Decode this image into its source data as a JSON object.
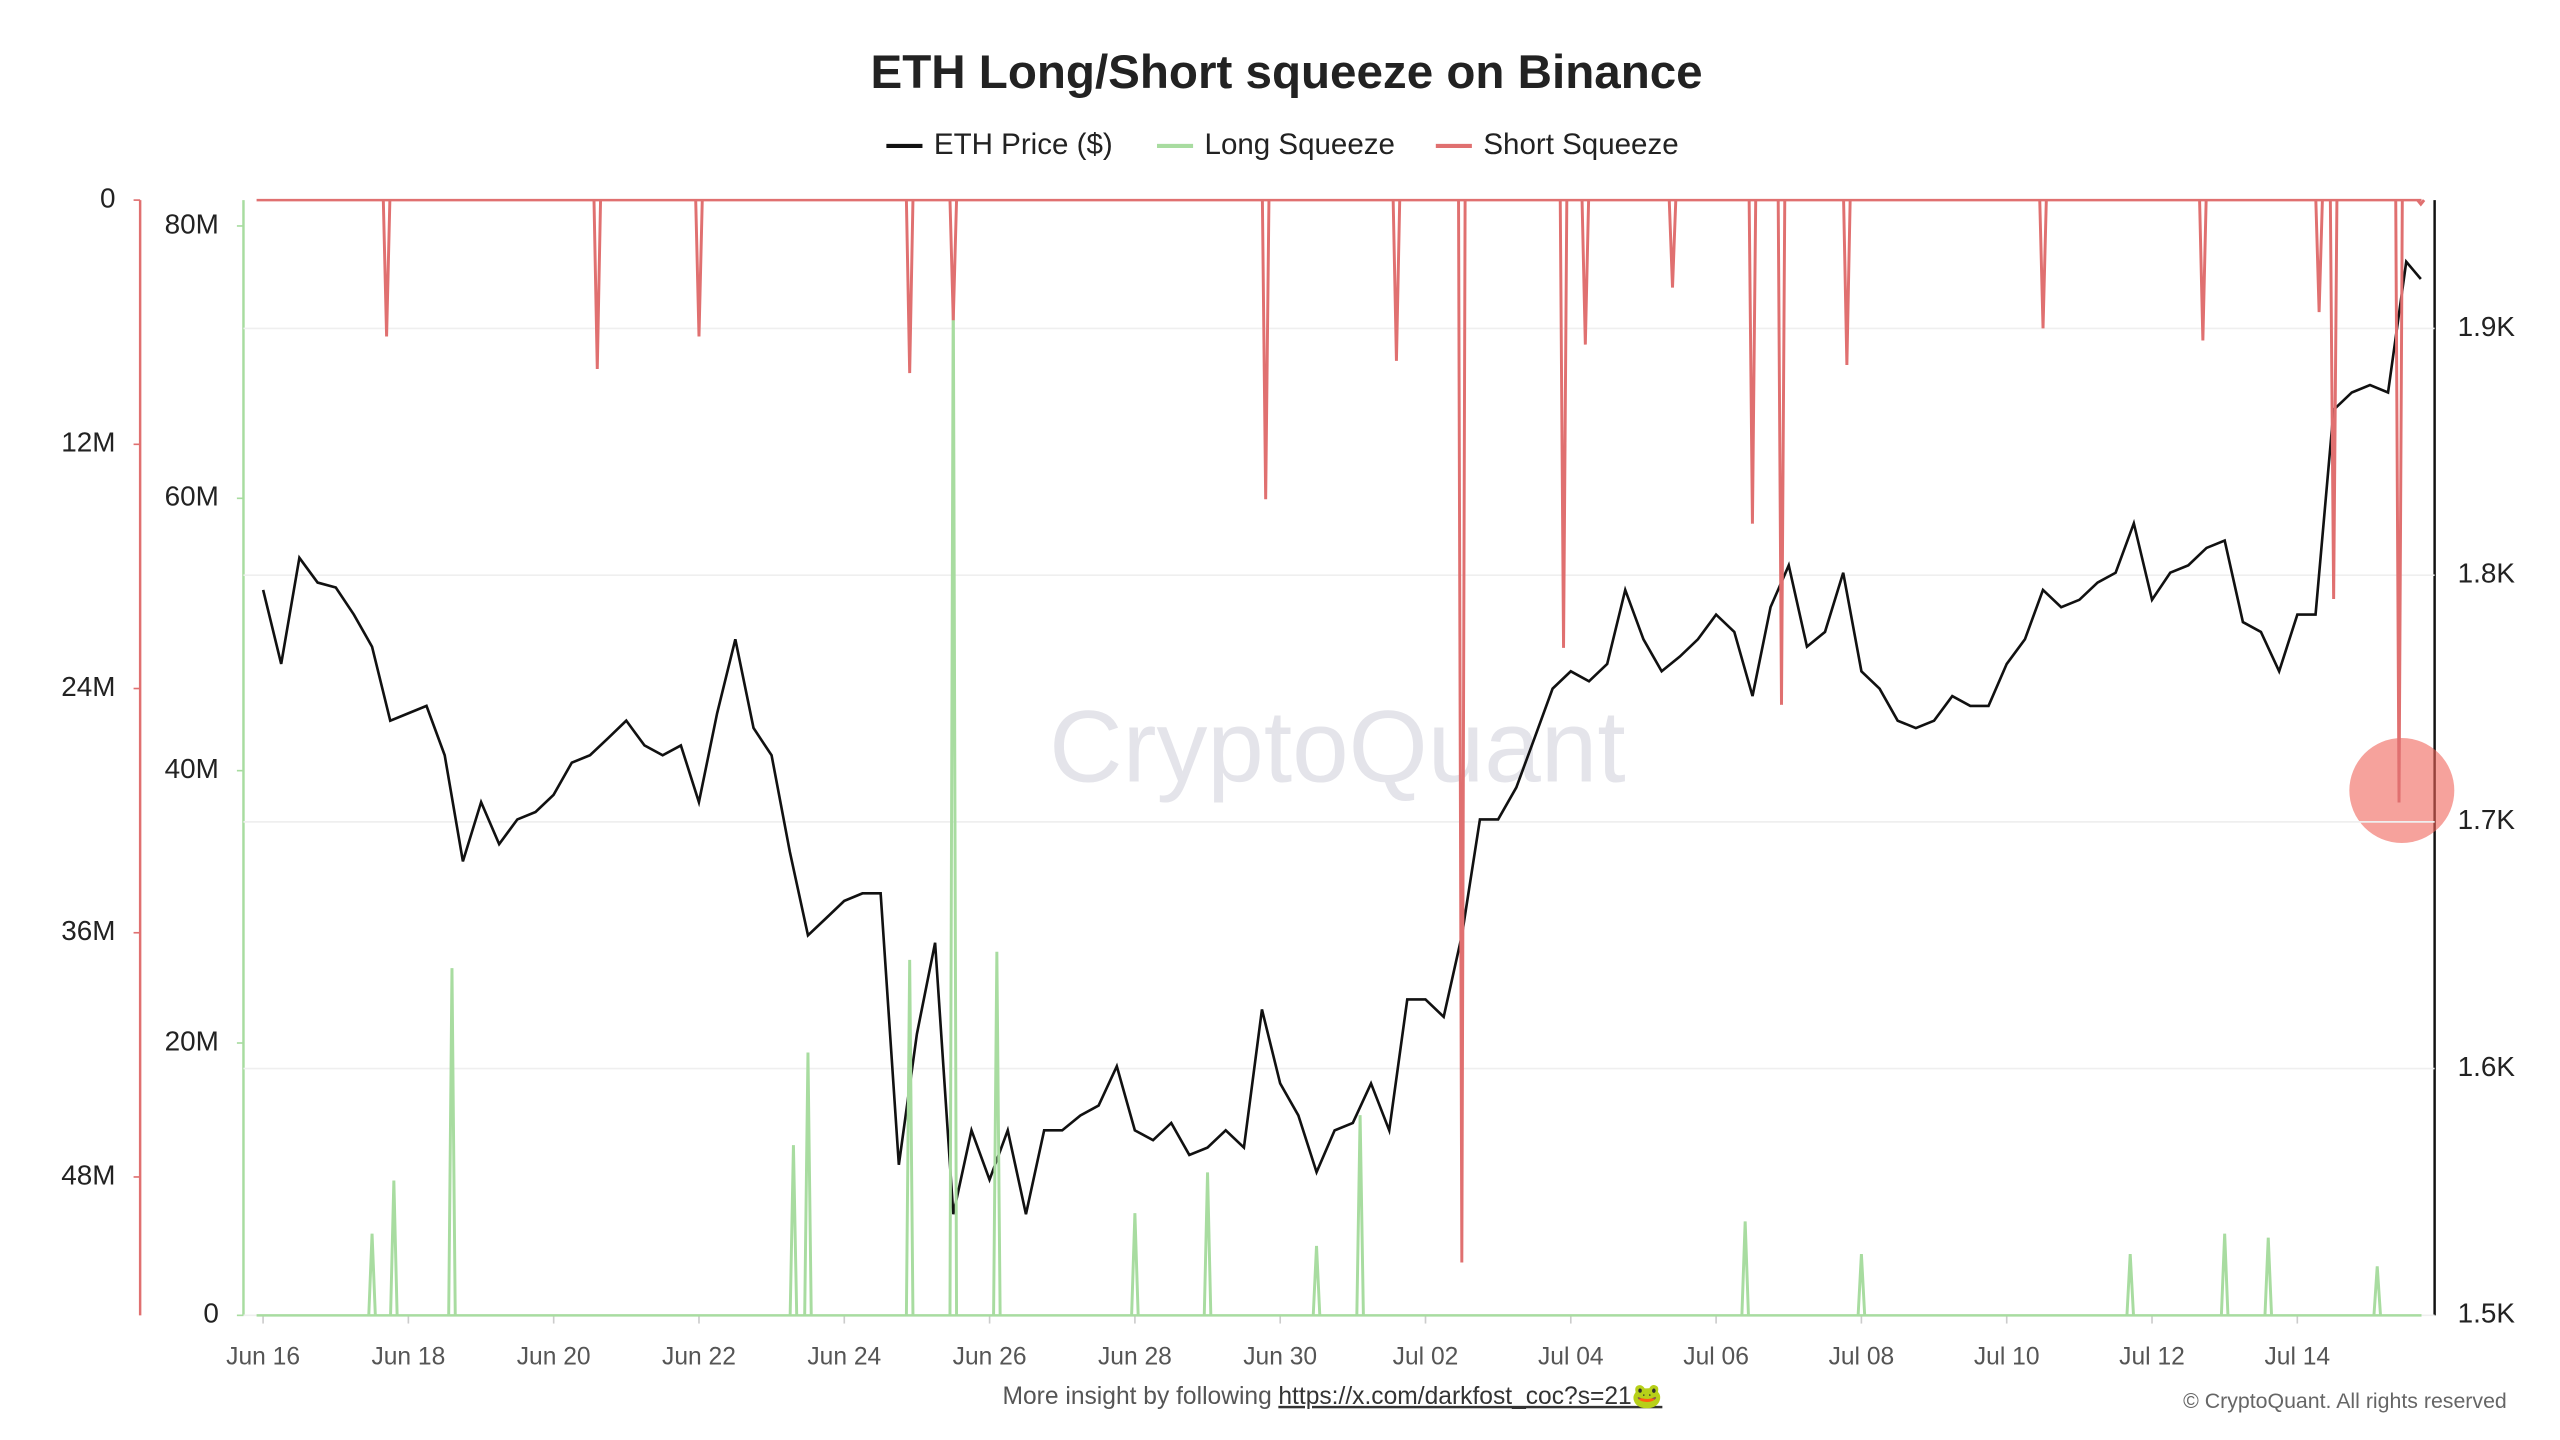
{
  "chart_data": {
    "type": "line",
    "title": "ETH Long/Short squeeze on Binance",
    "watermark": "CryptoQuant",
    "footer_text": "More insight by following",
    "footer_link": "https://x.com/darkfost_coc?s=21🐸",
    "copyright": "© CryptoQuant. All rights reserved",
    "grid": true,
    "legend": "top",
    "xlim": [
      -0.27,
      29.89
    ],
    "xticks": [
      {
        "value": 0,
        "label": "Jun 16"
      },
      {
        "value": 2,
        "label": "Jun 18"
      },
      {
        "value": 4,
        "label": "Jun 20"
      },
      {
        "value": 6,
        "label": "Jun 22"
      },
      {
        "value": 8,
        "label": "Jun 24"
      },
      {
        "value": 10,
        "label": "Jun 26"
      },
      {
        "value": 12,
        "label": "Jun 28"
      },
      {
        "value": 14,
        "label": "Jun 30"
      },
      {
        "value": 16,
        "label": "Jul 02"
      },
      {
        "value": 18,
        "label": "Jul 04"
      },
      {
        "value": 20,
        "label": "Jul 06"
      },
      {
        "value": 22,
        "label": "Jul 08"
      },
      {
        "value": 24,
        "label": "Jul 10"
      },
      {
        "value": 26,
        "label": "Jul 12"
      },
      {
        "value": 28,
        "label": "Jul 14"
      }
    ],
    "ylim": [
      0,
      81900000
    ],
    "yticks": [
      0,
      {
        "value": 20000000,
        "label": "20M"
      },
      {
        "value": 40000000,
        "label": "40M"
      },
      {
        "value": 60000000,
        "label": "60M"
      },
      {
        "value": 80000000,
        "label": "80M"
      }
    ],
    "y2lim": [
      1500,
      1952
    ],
    "y2ticks": [
      {
        "value": 1500,
        "label": "1.5K"
      },
      {
        "value": 1600,
        "label": "1.6K"
      },
      {
        "value": 1700,
        "label": "1.7K"
      },
      {
        "value": 1800,
        "label": "1.8K"
      },
      {
        "value": 1900,
        "label": "1.9K"
      }
    ],
    "y3lim": [
      0,
      54800000
    ],
    "y3_reversed": true,
    "y3ticks": [
      0,
      {
        "value": 12000000,
        "label": "12M"
      },
      {
        "value": 24000000,
        "label": "24M"
      },
      {
        "value": 36000000,
        "label": "36M"
      },
      {
        "value": 48000000,
        "label": "48M"
      }
    ],
    "series": [
      {
        "name": "ETH Price ($)",
        "color": "#111111",
        "axis": "y2",
        "x": [
          0,
          0.25,
          0.5,
          0.75,
          1,
          1.25,
          1.5,
          1.75,
          2,
          2.25,
          2.5,
          2.75,
          3,
          3.25,
          3.5,
          3.75,
          4,
          4.25,
          4.5,
          4.75,
          5,
          5.25,
          5.5,
          5.75,
          6,
          6.25,
          6.5,
          6.75,
          7,
          7.25,
          7.5,
          7.75,
          8,
          8.25,
          8.5,
          8.75,
          9,
          9.25,
          9.5,
          9.75,
          10,
          10.25,
          10.5,
          10.75,
          11,
          11.25,
          11.5,
          11.75,
          12,
          12.25,
          12.5,
          12.75,
          13,
          13.25,
          13.5,
          13.75,
          14,
          14.25,
          14.5,
          14.75,
          15,
          15.25,
          15.5,
          15.75,
          16,
          16.25,
          16.5,
          16.75,
          17,
          17.25,
          17.5,
          17.75,
          18,
          18.25,
          18.5,
          18.75,
          19,
          19.25,
          19.5,
          19.75,
          20,
          20.25,
          20.5,
          20.75,
          21,
          21.25,
          21.5,
          21.75,
          22,
          22.25,
          22.5,
          22.75,
          23,
          23.25,
          23.5,
          23.75,
          24,
          24.25,
          24.5,
          24.75,
          25,
          25.25,
          25.5,
          25.75,
          26,
          26.25,
          26.5,
          26.75,
          27,
          27.25,
          27.5,
          27.75,
          28,
          28.25,
          28.5,
          28.75,
          29,
          29.25,
          29.5,
          29.7
        ],
        "values": [
          1794,
          1764,
          1807,
          1797,
          1795,
          1784,
          1771,
          1741,
          1744,
          1747,
          1727,
          1684,
          1708,
          1691,
          1701,
          1704,
          1711,
          1724,
          1727,
          1734,
          1741,
          1731,
          1727,
          1731,
          1708,
          1744,
          1774,
          1738,
          1727,
          1688,
          1654,
          1661,
          1668,
          1671,
          1671,
          1561,
          1614,
          1651,
          1541,
          1575,
          1555,
          1575,
          1541,
          1575,
          1575,
          1581,
          1585,
          1601,
          1575,
          1571,
          1578,
          1565,
          1568,
          1575,
          1568,
          1624,
          1594,
          1581,
          1558,
          1575,
          1578,
          1594,
          1575,
          1628,
          1628,
          1621,
          1654,
          1701,
          1701,
          1714,
          1734,
          1754,
          1761,
          1757,
          1764,
          1794,
          1774,
          1761,
          1767,
          1774,
          1784,
          1777,
          1751,
          1787,
          1804,
          1771,
          1777,
          1801,
          1761,
          1754,
          1741,
          1738,
          1741,
          1751,
          1747,
          1747,
          1764,
          1774,
          1794,
          1787,
          1790,
          1797,
          1801,
          1821,
          1790,
          1801,
          1804,
          1811,
          1814,
          1781,
          1777,
          1761,
          1784,
          1784,
          1867,
          1874,
          1877,
          1874,
          1927,
          1920
        ]
      },
      {
        "name": "Long Squeeze",
        "color": "#a8dca0",
        "axis": "y",
        "x": [
          1.5,
          1.8,
          2.6,
          7.3,
          7.5,
          8.9,
          9.5,
          10.1,
          12.0,
          13.0,
          14.5,
          15.1,
          20.4,
          22.0,
          25.7,
          27.0,
          27.6,
          29.1
        ],
        "values": [
          6000000,
          9900000,
          25500000,
          12500000,
          19300000,
          26100000,
          76100000,
          26700000,
          7500000,
          10500000,
          5100000,
          14700000,
          6900000,
          4500000,
          4500000,
          6000000,
          5700000,
          3600000
        ]
      },
      {
        "name": "Short Squeeze",
        "color": "#e07070",
        "axis": "y3",
        "x": [
          1.7,
          4.6,
          6.0,
          8.9,
          9.5,
          13.8,
          15.6,
          16.5,
          17.9,
          18.2,
          19.4,
          20.5,
          20.9,
          21.8,
          24.5,
          26.7,
          28.3,
          28.5,
          29.4,
          29.7
        ],
        "values": [
          6700000,
          8300000,
          6700000,
          8500000,
          5900000,
          14700000,
          7900000,
          52200000,
          22000000,
          7100000,
          4300000,
          15900000,
          24800000,
          8100000,
          6300000,
          6900000,
          5500000,
          19600000,
          29600000,
          200000
        ]
      }
    ]
  }
}
